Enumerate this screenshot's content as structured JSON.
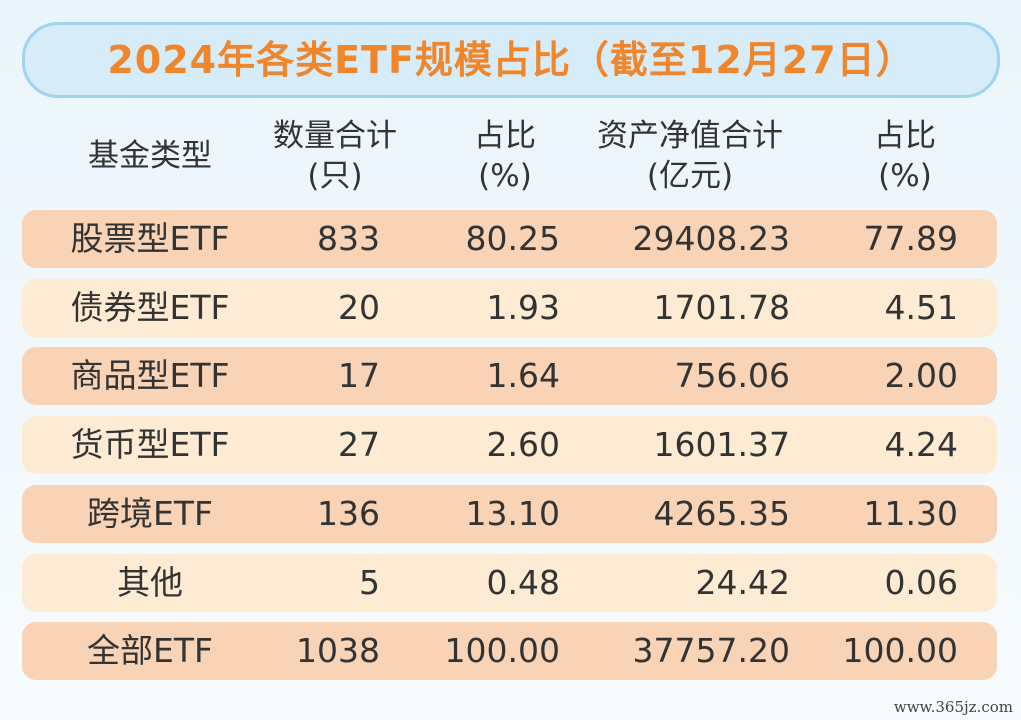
{
  "header": {
    "title": "2024年各类ETF规模占比（截至12月27日）"
  },
  "table": {
    "columns": [
      [
        "基金类型"
      ],
      [
        "数量合计",
        "(只)"
      ],
      [
        "占比",
        "(%)"
      ],
      [
        "资产净值合计",
        "(亿元)"
      ],
      [
        "占比",
        "(%)"
      ]
    ],
    "rows": [
      [
        "股票型ETF",
        "833",
        "80.25",
        "29408.23",
        "77.89"
      ],
      [
        "债券型ETF",
        "20",
        "1.93",
        "1701.78",
        "4.51"
      ],
      [
        "商品型ETF",
        "17",
        "1.64",
        "756.06",
        "2.00"
      ],
      [
        "货币型ETF",
        "27",
        "2.60",
        "1601.37",
        "4.24"
      ],
      [
        "跨境ETF",
        "136",
        "13.10",
        "4265.35",
        "11.30"
      ],
      [
        "其他",
        "5",
        "0.48",
        "24.42",
        "0.06"
      ],
      [
        "全部ETF",
        "1038",
        "100.00",
        "37757.20",
        "100.00"
      ]
    ]
  },
  "watermark": "www.365jz.com"
}
